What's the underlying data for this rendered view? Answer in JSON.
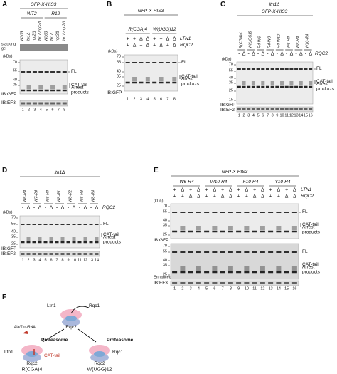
{
  "A": {
    "letter": "A",
    "construct": "GFP-X-HIS3",
    "groups": [
      "WT2",
      "R12"
    ],
    "strains": [
      "W303",
      "ltn1Δ",
      "rqc2Δ",
      "ltn1Δ/rqc2Δ",
      "W303",
      "ltn1Δ",
      "rqc2Δ",
      "ltn1Δ/rqc2Δ"
    ],
    "stacking_gel": "stacking gel",
    "kda": "(kDa)",
    "mw": [
      70,
      55,
      40,
      35
    ],
    "fl": "FL",
    "cat_tail": "CAT-tail",
    "arrest": "Arrest products",
    "ib": [
      "IB:GFP",
      "IB:EF3"
    ],
    "lanes": [
      1,
      2,
      3,
      4,
      5,
      6,
      7,
      8
    ]
  },
  "B": {
    "letter": "B",
    "construct": "GFP-X-HIS3",
    "groups": [
      "R(CGA)4",
      "W(UGG)12"
    ],
    "ltn1_label": "LTN1",
    "rqc2_label": "RQC2",
    "ltn1": [
      "+",
      "+",
      "Δ",
      "Δ",
      "+",
      "+",
      "Δ",
      "Δ"
    ],
    "rqc2": [
      "+",
      "Δ",
      "+",
      "Δ",
      "+",
      "Δ",
      "+",
      "Δ"
    ],
    "kda": "(kDa)",
    "mw": [
      70,
      55,
      40,
      35,
      25
    ],
    "fl": "FL",
    "cat_tail": "CAT-tail",
    "arrest": "Arrest products",
    "ib": [
      "IB:GFP"
    ],
    "lanes": [
      1,
      2,
      3,
      4,
      5,
      6,
      7,
      8
    ]
  },
  "C": {
    "letter": "C",
    "strain": "ltn1Δ",
    "construct": "GFP-X-HIS3",
    "constructs": [
      "R(CGA)4",
      "W(UGG)8",
      "R4-W6",
      "R4-W8",
      "R4-W10",
      "W6-R4",
      "W8-R4",
      "W10-R4"
    ],
    "rqc2_label": "RQC2",
    "rqc2": [
      "-",
      "Δ",
      "-",
      "Δ",
      "-",
      "Δ",
      "-",
      "Δ",
      "-",
      "Δ",
      "-",
      "Δ",
      "-",
      "Δ",
      "-",
      "Δ"
    ],
    "kda": "(kDa)",
    "mw": [
      70,
      55,
      40,
      35,
      25,
      15
    ],
    "fl": "FL",
    "cat_tail": "CAT-tail",
    "arrest": "Arrest products",
    "ib": [
      "IB:GFP",
      "IB:EF2"
    ],
    "lanes": [
      1,
      2,
      3,
      4,
      5,
      6,
      7,
      8,
      9,
      10,
      11,
      12,
      13,
      14,
      15,
      16
    ]
  },
  "D": {
    "letter": "D",
    "strain": "ltn1Δ",
    "constructs": [
      "W6-R4",
      "W7-R4",
      "W8-R4",
      "W8-R1",
      "W8-R2",
      "W8-R3",
      "W8-R4"
    ],
    "rqc2_label": "RQC2",
    "rqc2": [
      "-",
      "Δ",
      "-",
      "Δ",
      "-",
      "Δ",
      "-",
      "Δ",
      "-",
      "Δ",
      "-",
      "Δ",
      "-",
      "Δ"
    ],
    "kda": "(kDa)",
    "mw": [
      70,
      55,
      40,
      35,
      25
    ],
    "fl": "FL",
    "cat_tail": "CAT-tail",
    "arrest": "Arrest products",
    "ib": [
      "IB:GFP",
      "IB:EF2"
    ],
    "lanes": [
      1,
      2,
      3,
      4,
      5,
      6,
      7,
      8,
      9,
      10,
      11,
      12,
      13,
      14
    ]
  },
  "E": {
    "letter": "E",
    "construct": "GFP-X-HIS3",
    "constructs": [
      "W6-R4",
      "W10-R4",
      "F10-R4",
      "Y10-R4"
    ],
    "ltn1_label": "LTN1",
    "rqc2_label": "RQC2",
    "ltn1": [
      "+",
      "Δ",
      "+",
      "Δ",
      "+",
      "Δ",
      "+",
      "Δ",
      "+",
      "Δ",
      "+",
      "Δ",
      "+",
      "Δ",
      "+",
      "Δ"
    ],
    "rqc2": [
      "+",
      "+",
      "Δ",
      "Δ",
      "+",
      "+",
      "Δ",
      "Δ",
      "+",
      "+",
      "Δ",
      "Δ",
      "+",
      "+",
      "Δ",
      "Δ"
    ],
    "kda": "(kDa)",
    "mw": [
      70,
      55,
      40,
      35,
      25
    ],
    "mw2": [
      70,
      55,
      40,
      35,
      25
    ],
    "fl": "FL",
    "cat_tail": "CAT-tail",
    "arrest": "Arrest products",
    "ib": [
      "IB:GFP",
      "IB:EF3"
    ],
    "enhanced": "Enhanced",
    "lanes": [
      1,
      2,
      3,
      4,
      5,
      6,
      7,
      8,
      9,
      10,
      11,
      12,
      13,
      14,
      15,
      16
    ]
  },
  "F": {
    "letter": "F",
    "top": {
      "ltn1": "Ltn1",
      "rqc1": "Rqc1",
      "rqc2": "Rqc2"
    },
    "trna": "Ala/Thr-tRNA",
    "left": {
      "proteasome": "Proteasome",
      "ltn1": "Ltn1",
      "cat_tail": "CAT-tail",
      "rqc2": "Rqc2",
      "name": "R(CGA)4"
    },
    "right": {
      "proteasome": "Proteasome",
      "rqc1": "Rqc1",
      "rqc2": "Rqc2",
      "name": "W(UGG)12"
    }
  }
}
